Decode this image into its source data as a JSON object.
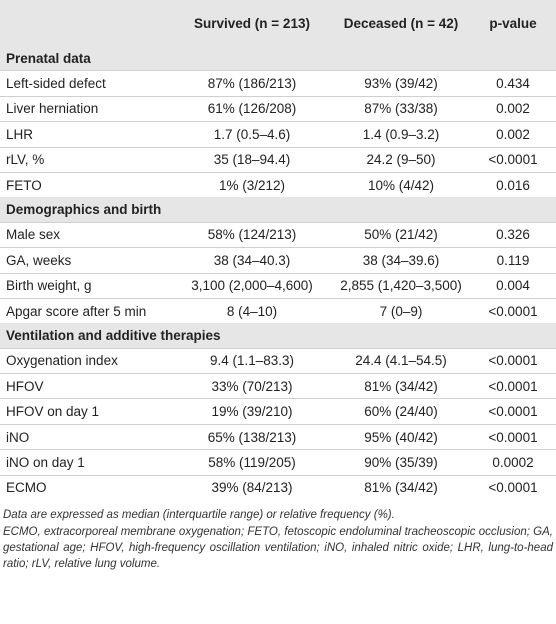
{
  "table": {
    "header": [
      "",
      "Survived (n = 213)",
      "Deceased (n = 42)",
      "p-value"
    ],
    "sections": [
      {
        "title": "Prenatal data",
        "rows": [
          [
            "Left-sided defect",
            "87% (186/213)",
            "93% (39/42)",
            "0.434"
          ],
          [
            "Liver herniation",
            "61% (126/208)",
            "87% (33/38)",
            "0.002"
          ],
          [
            "LHR",
            "1.7 (0.5–4.6)",
            "1.4 (0.9–3.2)",
            "0.002"
          ],
          [
            "rLV, %",
            "35 (18–94.4)",
            "24.2 (9–50)",
            "<0.0001"
          ],
          [
            "FETO",
            "1% (3/212)",
            "10% (4/42)",
            "0.016"
          ]
        ]
      },
      {
        "title": "Demographics and birth",
        "rows": [
          [
            "Male sex",
            "58% (124/213)",
            "50% (21/42)",
            "0.326"
          ],
          [
            "GA, weeks",
            "38 (34–40.3)",
            "38 (34–39.6)",
            "0.119"
          ],
          [
            "Birth weight, g",
            "3,100 (2,000–4,600)",
            "2,855 (1,420–3,500)",
            "0.004"
          ],
          [
            "Apgar score after 5 min",
            "8 (4–10)",
            "7 (0–9)",
            "<0.0001"
          ]
        ]
      },
      {
        "title": "Ventilation and additive therapies",
        "rows": [
          [
            "Oxygenation index",
            "9.4 (1.1–83.3)",
            "24.4 (4.1–54.5)",
            "<0.0001"
          ],
          [
            "HFOV",
            "33% (70/213)",
            "81% (34/42)",
            "<0.0001"
          ],
          [
            "HFOV on day 1",
            "19% (39/210)",
            "60% (24/40)",
            "<0.0001"
          ],
          [
            "iNO",
            "65% (138/213)",
            "95% (40/42)",
            "<0.0001"
          ],
          [
            "iNO on day 1",
            "58% (119/205)",
            "90% (35/39)",
            "0.0002"
          ],
          [
            "ECMO",
            "39% (84/213)",
            "81% (34/42)",
            "<0.0001"
          ]
        ]
      }
    ]
  },
  "footnotes": [
    "Data are expressed as median (interquartile range) or relative frequency (%).",
    "ECMO, extracorporeal membrane oxygenation; FETO, fetoscopic endoluminal tracheoscopic occlusion; GA, gestational age; HFOV, high-frequency oscillation ventilation; iNO, inhaled nitric oxide; LHR, lung-to-head ratio; rLV, relative lung volume."
  ]
}
